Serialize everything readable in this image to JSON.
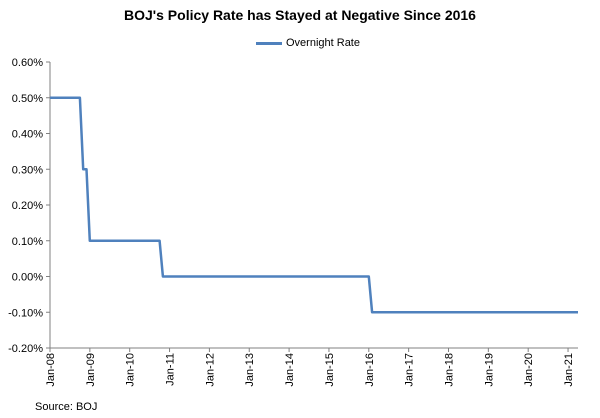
{
  "chart_data": {
    "type": "line",
    "title": "BOJ's Policy Rate has Stayed at Negative Since 2016",
    "xlabel": "",
    "ylabel": "",
    "ylim": [
      -0.2,
      0.6
    ],
    "y_ticks": [
      "-0.20%",
      "-0.10%",
      "0.00%",
      "0.10%",
      "0.20%",
      "0.30%",
      "0.40%",
      "0.50%",
      "0.60%"
    ],
    "y_tick_values": [
      -0.2,
      -0.1,
      0.0,
      0.1,
      0.2,
      0.3,
      0.4,
      0.5,
      0.6
    ],
    "x_ticks": [
      "Jan-08",
      "Jan-09",
      "Jan-10",
      "Jan-11",
      "Jan-12",
      "Jan-13",
      "Jan-14",
      "Jan-15",
      "Jan-16",
      "Jan-17",
      "Jan-18",
      "Jan-19",
      "Jan-20",
      "Jan-21"
    ],
    "x_range": [
      "2008-01",
      "2021-04"
    ],
    "grid": false,
    "legend_position": "top-center",
    "series": [
      {
        "name": "Overnight Rate",
        "color": "#4F81BD",
        "points": [
          {
            "x": "2008-01",
            "y": 0.5
          },
          {
            "x": "2008-10",
            "y": 0.5
          },
          {
            "x": "2008-11",
            "y": 0.3
          },
          {
            "x": "2008-12",
            "y": 0.3
          },
          {
            "x": "2009-01",
            "y": 0.1
          },
          {
            "x": "2010-10",
            "y": 0.1
          },
          {
            "x": "2010-11",
            "y": 0.0
          },
          {
            "x": "2016-01",
            "y": 0.0
          },
          {
            "x": "2016-02",
            "y": -0.1
          },
          {
            "x": "2021-04",
            "y": -0.1
          }
        ]
      }
    ]
  },
  "source": "Source: BOJ"
}
